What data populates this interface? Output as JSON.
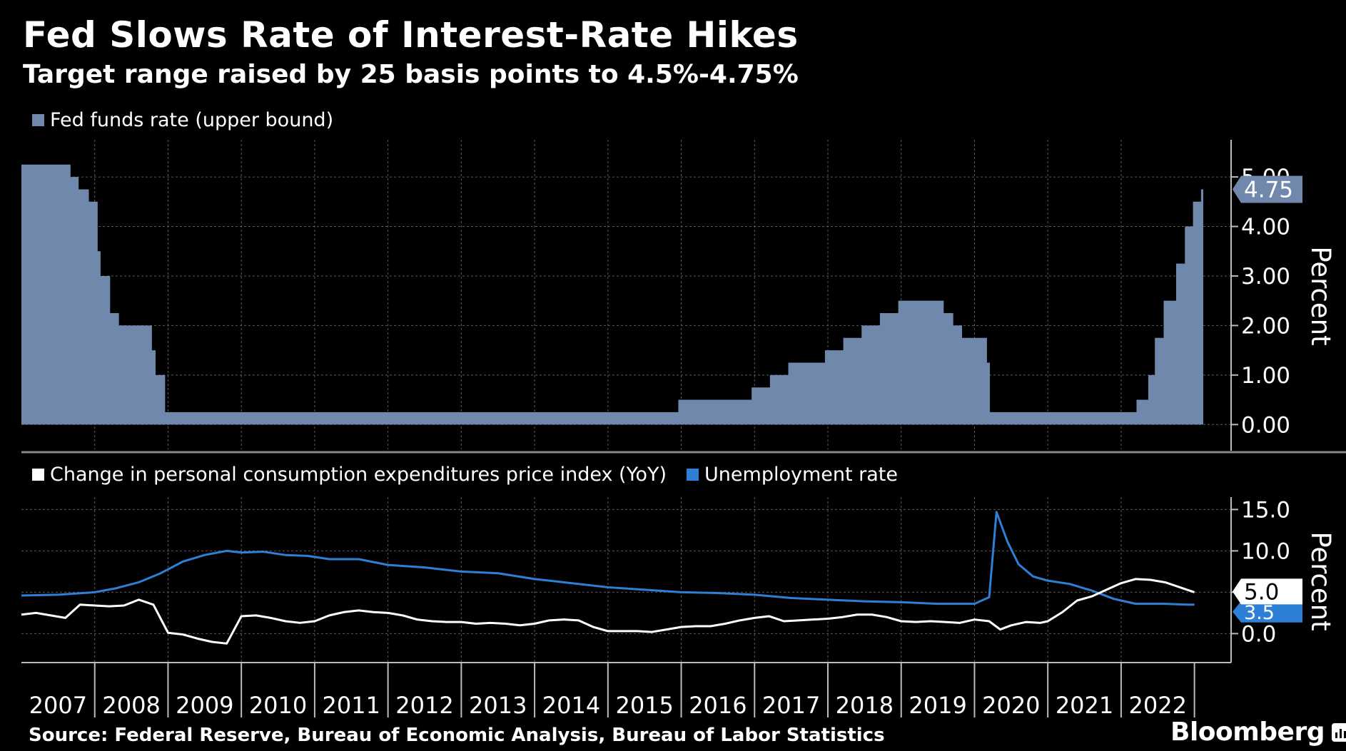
{
  "title": "Fed Slows Rate of Interest-Rate Hikes",
  "subtitle": "Target range raised by 25 basis points to 4.5%-4.75%",
  "footer": {
    "source": "Source: Federal Reserve, Bureau of Economic Analysis, Bureau of Labor Statistics",
    "brand": "Bloomberg"
  },
  "colors": {
    "background": "#000000",
    "fed_funds": "#7088AC",
    "pce": "#FFFFFF",
    "unemployment": "#2E7FD6"
  },
  "chart_data": [
    {
      "type": "area",
      "legend": [
        "Fed funds rate (upper bound)"
      ],
      "ylabel": "Percent",
      "ylim": [
        -0.5,
        5.75
      ],
      "y_ticks": [
        "0.00",
        "1.00",
        "2.00",
        "3.00",
        "4.00",
        "5.00"
      ],
      "last_value_label": "4.75",
      "grid": true,
      "series": [
        {
          "name": "Fed funds rate (upper bound)",
          "step_points": [
            [
              2007.0,
              5.25
            ],
            [
              2007.67,
              5.0
            ],
            [
              2007.78,
              4.75
            ],
            [
              2007.92,
              4.5
            ],
            [
              2008.04,
              3.5
            ],
            [
              2008.08,
              3.0
            ],
            [
              2008.21,
              2.25
            ],
            [
              2008.33,
              2.0
            ],
            [
              2008.78,
              1.5
            ],
            [
              2008.83,
              1.0
            ],
            [
              2008.96,
              0.25
            ],
            [
              2015.96,
              0.5
            ],
            [
              2016.96,
              0.75
            ],
            [
              2017.21,
              1.0
            ],
            [
              2017.46,
              1.25
            ],
            [
              2017.96,
              1.5
            ],
            [
              2018.21,
              1.75
            ],
            [
              2018.46,
              2.0
            ],
            [
              2018.71,
              2.25
            ],
            [
              2018.96,
              2.5
            ],
            [
              2019.58,
              2.25
            ],
            [
              2019.71,
              2.0
            ],
            [
              2019.83,
              1.75
            ],
            [
              2020.17,
              1.25
            ],
            [
              2020.21,
              0.25
            ],
            [
              2022.21,
              0.5
            ],
            [
              2022.37,
              1.0
            ],
            [
              2022.46,
              1.75
            ],
            [
              2022.58,
              2.5
            ],
            [
              2022.75,
              3.25
            ],
            [
              2022.87,
              4.0
            ],
            [
              2022.98,
              4.5
            ],
            [
              2023.09,
              4.75
            ],
            [
              2023.12,
              4.75
            ]
          ]
        }
      ]
    },
    {
      "type": "line",
      "legend": [
        "Change in personal consumption expenditures price index (YoY)",
        "Unemployment rate"
      ],
      "ylabel": "Percent",
      "ylim": [
        -3.5,
        16.5
      ],
      "y_ticks": [
        "0.0",
        "5.0",
        "10.0",
        "15.0"
      ],
      "last_value_labels": [
        "5.0",
        "3.5"
      ],
      "x_tick_labels": [
        "2007",
        "2008",
        "2009",
        "2010",
        "2011",
        "2012",
        "2013",
        "2014",
        "2015",
        "2016",
        "2017",
        "2018",
        "2019",
        "2020",
        "2021",
        "2022"
      ],
      "xlim": [
        2007.0,
        2023.5
      ],
      "grid": true,
      "series": [
        {
          "name": "Change in personal consumption expenditures price index (YoY)",
          "x": [
            2007.0,
            2007.2,
            2007.4,
            2007.6,
            2007.8,
            2008.0,
            2008.2,
            2008.4,
            2008.6,
            2008.8,
            2009.0,
            2009.2,
            2009.4,
            2009.6,
            2009.8,
            2010.0,
            2010.2,
            2010.4,
            2010.6,
            2010.8,
            2011.0,
            2011.2,
            2011.4,
            2011.6,
            2011.8,
            2012.0,
            2012.2,
            2012.4,
            2012.6,
            2012.8,
            2013.0,
            2013.2,
            2013.4,
            2013.6,
            2013.8,
            2014.0,
            2014.2,
            2014.4,
            2014.6,
            2014.8,
            2015.0,
            2015.2,
            2015.4,
            2015.6,
            2015.8,
            2016.0,
            2016.2,
            2016.4,
            2016.6,
            2016.8,
            2017.0,
            2017.2,
            2017.4,
            2017.6,
            2017.8,
            2018.0,
            2018.2,
            2018.4,
            2018.6,
            2018.8,
            2019.0,
            2019.2,
            2019.4,
            2019.6,
            2019.8,
            2020.0,
            2020.2,
            2020.35,
            2020.5,
            2020.7,
            2020.9,
            2021.0,
            2021.2,
            2021.4,
            2021.6,
            2021.8,
            2022.0,
            2022.2,
            2022.4,
            2022.6,
            2022.8,
            2023.0
          ],
          "values": [
            2.3,
            2.5,
            2.2,
            1.9,
            3.5,
            3.4,
            3.3,
            3.4,
            4.1,
            3.5,
            0.1,
            -0.1,
            -0.6,
            -1.0,
            -1.2,
            2.1,
            2.2,
            1.9,
            1.5,
            1.3,
            1.5,
            2.2,
            2.6,
            2.8,
            2.6,
            2.5,
            2.2,
            1.7,
            1.5,
            1.4,
            1.4,
            1.2,
            1.3,
            1.2,
            1.0,
            1.2,
            1.6,
            1.7,
            1.6,
            0.8,
            0.3,
            0.3,
            0.3,
            0.2,
            0.5,
            0.8,
            0.9,
            0.9,
            1.2,
            1.6,
            1.9,
            2.1,
            1.5,
            1.6,
            1.7,
            1.8,
            2.0,
            2.3,
            2.3,
            2.0,
            1.5,
            1.4,
            1.5,
            1.4,
            1.3,
            1.7,
            1.5,
            0.5,
            1.0,
            1.4,
            1.3,
            1.5,
            2.6,
            4.0,
            4.5,
            5.3,
            6.1,
            6.6,
            6.5,
            6.2,
            5.6,
            5.0
          ]
        },
        {
          "name": "Unemployment rate",
          "x": [
            2007.0,
            2007.5,
            2008.0,
            2008.3,
            2008.6,
            2008.9,
            2009.2,
            2009.5,
            2009.8,
            2010.0,
            2010.3,
            2010.6,
            2010.9,
            2011.2,
            2011.6,
            2012.0,
            2012.5,
            2013.0,
            2013.5,
            2014.0,
            2014.5,
            2015.0,
            2015.5,
            2016.0,
            2016.5,
            2017.0,
            2017.5,
            2018.0,
            2018.5,
            2019.0,
            2019.5,
            2020.0,
            2020.2,
            2020.3,
            2020.45,
            2020.6,
            2020.8,
            2021.0,
            2021.3,
            2021.6,
            2021.9,
            2022.2,
            2022.6,
            2022.9,
            2023.0
          ],
          "values": [
            4.6,
            4.7,
            5.0,
            5.5,
            6.2,
            7.3,
            8.7,
            9.5,
            10.0,
            9.8,
            9.9,
            9.5,
            9.4,
            9.0,
            9.0,
            8.3,
            8.0,
            7.5,
            7.3,
            6.6,
            6.1,
            5.6,
            5.3,
            5.0,
            4.9,
            4.7,
            4.3,
            4.1,
            3.9,
            3.8,
            3.6,
            3.6,
            4.4,
            14.7,
            11.1,
            8.4,
            6.9,
            6.4,
            6.0,
            5.2,
            4.2,
            3.6,
            3.6,
            3.5,
            3.5
          ]
        }
      ]
    }
  ]
}
